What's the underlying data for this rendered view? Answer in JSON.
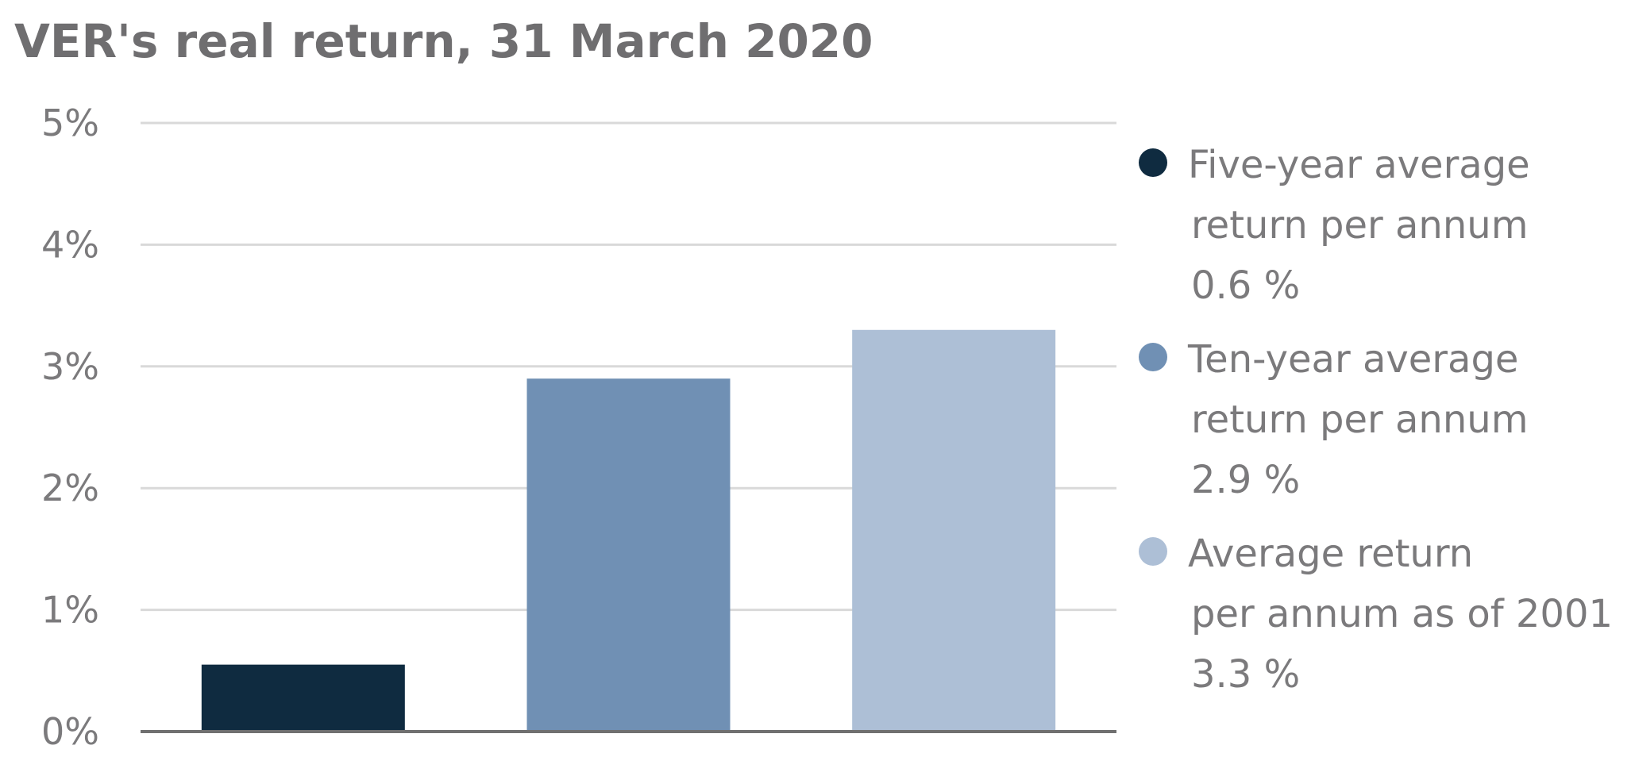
{
  "chart_data": {
    "type": "bar",
    "title": "VER's real return, 31 March 2020",
    "xlabel": "",
    "ylabel": "",
    "ylim": [
      0,
      5
    ],
    "yticks": [
      0,
      1,
      2,
      3,
      4,
      5
    ],
    "ytick_labels": [
      "0%",
      "1%",
      "2%",
      "3%",
      "4%",
      "5%"
    ],
    "grid": true,
    "legend_position": "right",
    "categories": [
      "Five-year average return per annum",
      "Ten-year average return per annum",
      "Average return per annum as of 2001"
    ],
    "values": [
      0.55,
      2.9,
      3.3
    ],
    "colors": [
      "#0f2b40",
      "#7090b4",
      "#adbfd6"
    ],
    "legend": [
      {
        "lines": [
          "Five-year average",
          "return per annum"
        ],
        "value_label": "0.6 %",
        "color": "#0f2b40"
      },
      {
        "lines": [
          "Ten-year average",
          "return per annum"
        ],
        "value_label": "2.9 %",
        "color": "#7090b4"
      },
      {
        "lines": [
          "Average return",
          "per annum as of 2001"
        ],
        "value_label": "3.3 %",
        "color": "#adbfd6"
      }
    ]
  }
}
